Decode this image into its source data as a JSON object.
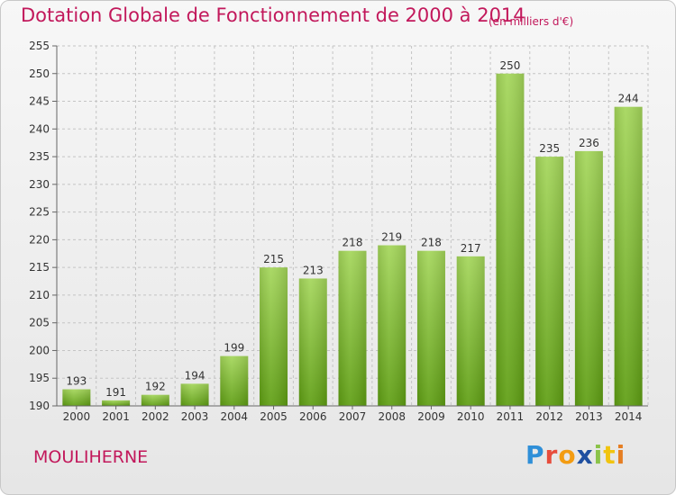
{
  "chart_data": {
    "type": "bar",
    "title": "Dotation Globale de Fonctionnement de 2000 à 2014",
    "subtitle": "(en milliers d'€)",
    "categories": [
      "2000",
      "2001",
      "2002",
      "2003",
      "2004",
      "2005",
      "2006",
      "2007",
      "2008",
      "2009",
      "2010",
      "2011",
      "2012",
      "2013",
      "2014"
    ],
    "values": [
      193,
      191,
      192,
      194,
      199,
      215,
      213,
      218,
      219,
      218,
      217,
      250,
      235,
      236,
      244
    ],
    "ylim": [
      190,
      255
    ],
    "yticks": [
      190,
      195,
      200,
      205,
      210,
      215,
      220,
      225,
      230,
      235,
      240,
      245,
      250,
      255
    ],
    "grid": true,
    "bar_color": "#7cba2e"
  },
  "footer": {
    "place": "MOULIHERNE",
    "logo": "Proxiti"
  }
}
